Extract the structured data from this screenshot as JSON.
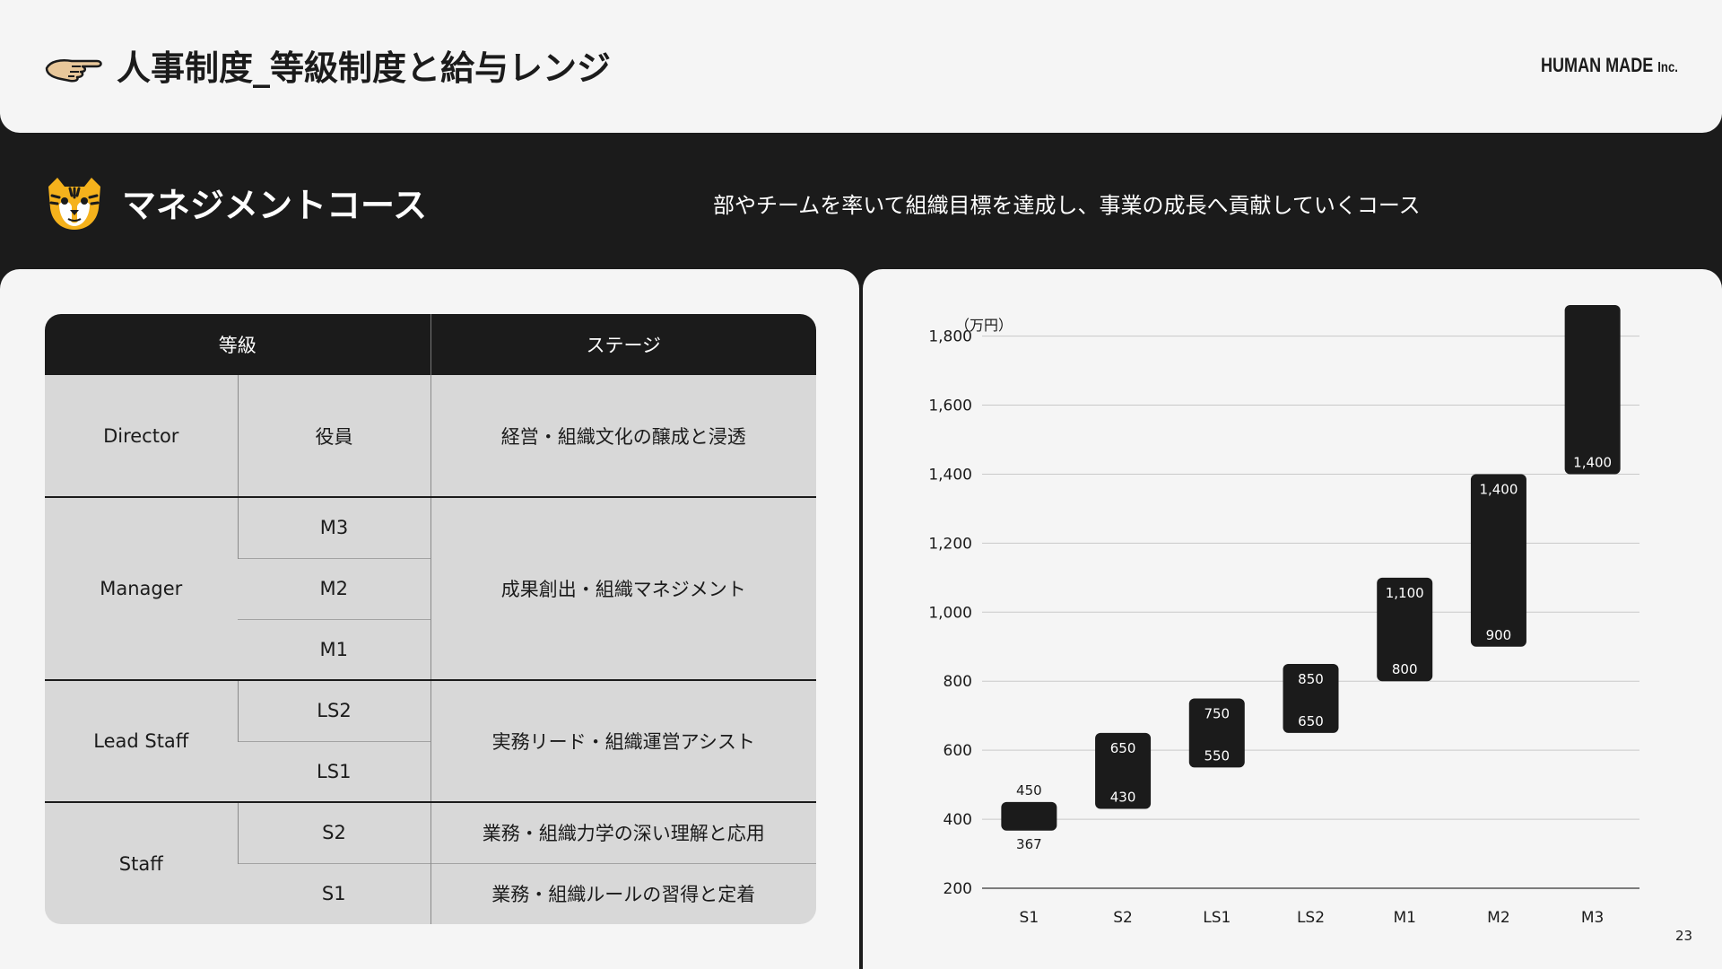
{
  "header": {
    "title": "人事制度_等級制度と給与レンジ",
    "brand_main": "HUMAN MADE",
    "brand_suffix": "Inc.",
    "hand_icon": "pointing-hand-icon"
  },
  "course": {
    "title": "マネジメントコース",
    "description": "部やチームを率いて組織目標を達成し、事業の成長へ貢献していくコース",
    "icon": "tiger-face-icon"
  },
  "table": {
    "headers": [
      "等級",
      "ステージ"
    ],
    "groups": [
      {
        "name": "Director",
        "grades": [
          "役員"
        ],
        "stages": [
          "経営・組織文化の醸成と浸透"
        ]
      },
      {
        "name": "Manager",
        "grades": [
          "M3",
          "M2",
          "M1"
        ],
        "stages": [
          "成果創出・組織マネジメント"
        ]
      },
      {
        "name": "Lead Staff",
        "grades": [
          "LS2",
          "LS1"
        ],
        "stages": [
          "実務リード・組織運営アシスト"
        ]
      },
      {
        "name": "Staff",
        "grades": [
          "S2",
          "S1"
        ],
        "stages": [
          "業務・組織力学の深い理解と応用",
          "業務・組織ルールの習得と定着"
        ]
      }
    ]
  },
  "chart_data": {
    "type": "bar",
    "subtype": "floating-range",
    "unit_label": "（万円）",
    "categories": [
      "S1",
      "S2",
      "LS1",
      "LS2",
      "M1",
      "M2",
      "M3"
    ],
    "series": [
      {
        "name": "",
        "low": [
          367,
          430,
          550,
          650,
          800,
          900,
          1400
        ],
        "high": [
          450,
          650,
          750,
          850,
          1100,
          1400,
          1890
        ]
      }
    ],
    "low_labels": [
      "367",
      "430",
      "550",
      "650",
      "800",
      "900",
      "1,400"
    ],
    "high_labels": [
      "450",
      "650",
      "750",
      "850",
      "1,100",
      "1,400",
      ""
    ],
    "yticks": [
      200,
      400,
      600,
      800,
      1000,
      1200,
      1400,
      1600,
      1800
    ],
    "ytick_labels": [
      "200",
      "400",
      "600",
      "800",
      "1,000",
      "1,200",
      "1,400",
      "1,600",
      "1,800"
    ],
    "ylim": [
      200,
      1890
    ],
    "grid": true,
    "bar_color": "#1b1b1b"
  },
  "page_number": "23"
}
